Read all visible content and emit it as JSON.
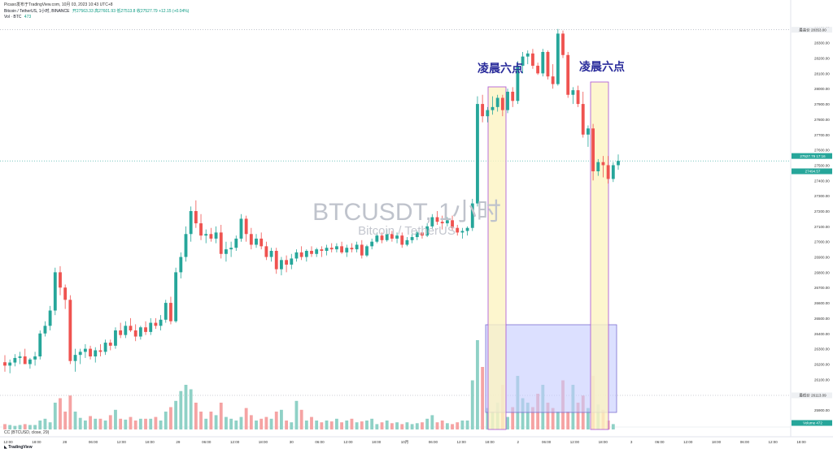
{
  "header": {
    "published_line": "Picaso发布于TradingView.com, 10月 03, 2023 10:43 UTC+8",
    "symbol_line": "Bitcoin / TetherUS, 1小时, BINANCE",
    "ohlc_line": "开27563.33 高27601.93 低27513.8 收27527.79 +12.15 (+0.04%)",
    "volume_line": "Vol · BTC",
    "volume_value": "473"
  },
  "watermark": {
    "title": "BTCUSDT, 1小时",
    "subtitle": "Bitcoin / TetherUS"
  },
  "annotations": {
    "left": "凌晨六点",
    "right": "凌晨六点"
  },
  "footer": {
    "indicator": "CC (BTCUSD, close, 29)",
    "logo": "TradingView"
  },
  "colors": {
    "up": "#26a69a",
    "down": "#ef5350",
    "vol_up": "#8fd1c6",
    "vol_down": "#f5a3a3",
    "highlight_fill": "#fdf4c2",
    "highlight_border": "#a84fd6",
    "range_fill": "#c4ccff",
    "range_border": "#7b6fd0",
    "annotation": "#2a2c9b"
  },
  "chart_data": {
    "type": "candlestick",
    "series_name": "BTCUSDT",
    "price_axis_labels": [
      "28400.00",
      "28300.00",
      "28200.00",
      "28100.00",
      "28000.00",
      "27900.00",
      "27800.00",
      "27700.00",
      "27600.00",
      "27500.00",
      "27400.00",
      "27300.00",
      "27200.00",
      "27100.00",
      "27000.00",
      "26900.00",
      "26800.00",
      "26700.00",
      "26600.00",
      "26500.00",
      "26400.00",
      "26300.00",
      "26200.00",
      "26100.00",
      "26000.00",
      "25900.00"
    ],
    "price_badges": {
      "top": "28353.00",
      "top_label": "最高价",
      "current": "27527.79",
      "current_sub": "17:16",
      "open_badge": "27494.57",
      "low": "26113.09",
      "low_label": "最低价",
      "volume_badge": "472"
    },
    "time_labels": [
      "12:00",
      "18:00",
      "28",
      "06:00",
      "12:00",
      "18:00",
      "29",
      "06:00",
      "12:00",
      "18:00",
      "30",
      "06:00",
      "12:00",
      "18:00",
      "10月",
      "06:00",
      "12:00",
      "18:00",
      "2",
      "06:00",
      "12:00",
      "18:00",
      "3",
      "06:00",
      "12:00",
      "18:00",
      "06:00",
      "12:00",
      "18:00"
    ],
    "candles": [
      [
        26212,
        26258,
        26150,
        26190
      ],
      [
        26190,
        26230,
        26140,
        26210
      ],
      [
        26210,
        26265,
        26185,
        26240
      ],
      [
        26240,
        26280,
        26200,
        26250
      ],
      [
        26250,
        26300,
        26200,
        26200
      ],
      [
        26200,
        26240,
        26170,
        26230
      ],
      [
        26230,
        26280,
        26190,
        26250
      ],
      [
        26250,
        26420,
        26230,
        26400
      ],
      [
        26400,
        26480,
        26380,
        26450
      ],
      [
        26450,
        26580,
        26420,
        26550
      ],
      [
        26550,
        26830,
        26520,
        26800
      ],
      [
        26800,
        26840,
        26650,
        26700
      ],
      [
        26700,
        26720,
        26560,
        26620
      ],
      [
        26620,
        26650,
        26200,
        26220
      ],
      [
        26220,
        26300,
        26150,
        26260
      ],
      [
        26260,
        26300,
        26200,
        26280
      ],
      [
        26280,
        26330,
        26240,
        26300
      ],
      [
        26300,
        26320,
        26230,
        26250
      ],
      [
        26250,
        26310,
        26210,
        26290
      ],
      [
        26290,
        26330,
        26250,
        26280
      ],
      [
        26280,
        26360,
        26260,
        26340
      ],
      [
        26340,
        26360,
        26290,
        26320
      ],
      [
        26320,
        26440,
        26300,
        26420
      ],
      [
        26420,
        26470,
        26370,
        26390
      ],
      [
        26390,
        26480,
        26370,
        26450
      ],
      [
        26450,
        26500,
        26410,
        26420
      ],
      [
        26420,
        26460,
        26350,
        26380
      ],
      [
        26380,
        26450,
        26360,
        26440
      ],
      [
        26440,
        26480,
        26390,
        26410
      ],
      [
        26410,
        26500,
        26390,
        26470
      ],
      [
        26470,
        26500,
        26430,
        26450
      ],
      [
        26450,
        26520,
        26420,
        26490
      ],
      [
        26490,
        26620,
        26470,
        26600
      ],
      [
        26600,
        26640,
        26460,
        26480
      ],
      [
        26480,
        26830,
        26470,
        26800
      ],
      [
        26800,
        26930,
        26760,
        26900
      ],
      [
        26900,
        27100,
        26870,
        27050
      ],
      [
        27050,
        27230,
        27000,
        27200
      ],
      [
        27200,
        27270,
        27090,
        27120
      ],
      [
        27120,
        27180,
        27010,
        27040
      ],
      [
        27040,
        27080,
        26990,
        27050
      ],
      [
        27050,
        27090,
        27000,
        27020
      ],
      [
        27020,
        27100,
        26990,
        27060
      ],
      [
        27060,
        27110,
        26890,
        26920
      ],
      [
        26920,
        27000,
        26870,
        26950
      ],
      [
        26950,
        27000,
        26900,
        26960
      ],
      [
        26960,
        27040,
        26940,
        27020
      ],
      [
        27020,
        27180,
        27000,
        27150
      ],
      [
        27150,
        27170,
        27000,
        27050
      ],
      [
        27050,
        27090,
        26950,
        26980
      ],
      [
        26980,
        27050,
        26960,
        27020
      ],
      [
        27020,
        27060,
        26950,
        26970
      ],
      [
        26970,
        27000,
        26880,
        26900
      ],
      [
        26900,
        26960,
        26870,
        26940
      ],
      [
        26940,
        26960,
        26790,
        26820
      ],
      [
        26820,
        26900,
        26780,
        26880
      ],
      [
        26880,
        26910,
        26800,
        26850
      ],
      [
        26850,
        26920,
        26820,
        26890
      ],
      [
        26890,
        26950,
        26870,
        26930
      ],
      [
        26930,
        26970,
        26880,
        26900
      ],
      [
        26900,
        26950,
        26870,
        26940
      ],
      [
        26940,
        26970,
        26900,
        26920
      ],
      [
        26920,
        26960,
        26900,
        26950
      ],
      [
        26950,
        26970,
        26900,
        26940
      ],
      [
        26940,
        26980,
        26910,
        26960
      ],
      [
        26960,
        26990,
        26930,
        26950
      ],
      [
        26950,
        26990,
        26930,
        26970
      ],
      [
        26970,
        27000,
        26920,
        26930
      ],
      [
        26930,
        26980,
        26900,
        26960
      ],
      [
        26960,
        26990,
        26930,
        26950
      ],
      [
        26950,
        27000,
        26930,
        26980
      ],
      [
        26980,
        27010,
        26890,
        26910
      ],
      [
        26910,
        26980,
        26900,
        26970
      ],
      [
        26970,
        27020,
        26950,
        27000
      ],
      [
        27000,
        27060,
        26990,
        27040
      ],
      [
        27040,
        27060,
        26990,
        27010
      ],
      [
        27010,
        27080,
        27000,
        27050
      ],
      [
        27050,
        27070,
        27000,
        27020
      ],
      [
        27020,
        27060,
        26990,
        27040
      ],
      [
        27040,
        27060,
        26960,
        26980
      ],
      [
        26980,
        27030,
        26970,
        27010
      ],
      [
        27010,
        27050,
        26990,
        27030
      ],
      [
        27030,
        27070,
        27010,
        27060
      ],
      [
        27060,
        27090,
        27020,
        27040
      ],
      [
        27040,
        27120,
        27030,
        27100
      ],
      [
        27100,
        27180,
        27080,
        27160
      ],
      [
        27160,
        27200,
        27110,
        27130
      ],
      [
        27130,
        27170,
        27080,
        27120
      ],
      [
        27120,
        27160,
        27100,
        27140
      ],
      [
        27140,
        27170,
        27070,
        27090
      ],
      [
        27090,
        27110,
        27040,
        27060
      ],
      [
        27060,
        27090,
        27020,
        27070
      ],
      [
        27070,
        27100,
        27040,
        27090
      ],
      [
        27090,
        27280,
        27070,
        27250
      ],
      [
        27250,
        27950,
        27230,
        27900
      ],
      [
        27900,
        27960,
        27780,
        27820
      ],
      [
        27820,
        27880,
        27780,
        27860
      ],
      [
        27860,
        27950,
        27830,
        27880
      ],
      [
        27880,
        27960,
        27850,
        27940
      ],
      [
        27940,
        27960,
        27820,
        27860
      ],
      [
        27860,
        28000,
        27840,
        27980
      ],
      [
        27980,
        28010,
        27880,
        27920
      ],
      [
        27920,
        28180,
        27900,
        28150
      ],
      [
        28150,
        28240,
        28100,
        28210
      ],
      [
        28210,
        28250,
        28160,
        28230
      ],
      [
        28230,
        28260,
        28130,
        28150
      ],
      [
        28150,
        28170,
        28090,
        28100
      ],
      [
        28100,
        28260,
        28080,
        28240
      ],
      [
        28240,
        28250,
        28060,
        28080
      ],
      [
        28080,
        28160,
        28000,
        28030
      ],
      [
        28030,
        28390,
        28020,
        28360
      ],
      [
        28360,
        28380,
        28200,
        28220
      ],
      [
        28220,
        28240,
        27940,
        27960
      ],
      [
        27960,
        28010,
        27900,
        27990
      ],
      [
        27990,
        28020,
        27880,
        27900
      ],
      [
        27900,
        27980,
        27680,
        27700
      ],
      [
        27700,
        27760,
        27620,
        27740
      ],
      [
        27740,
        27770,
        27400,
        27460
      ],
      [
        27460,
        27540,
        27430,
        27520
      ],
      [
        27520,
        27560,
        27420,
        27500
      ],
      [
        27500,
        27560,
        27380,
        27410
      ],
      [
        27410,
        27520,
        27390,
        27500
      ],
      [
        27500,
        27570,
        27470,
        27528
      ]
    ],
    "volumes": [
      0.06,
      0.05,
      0.04,
      0.05,
      0.06,
      0.05,
      0.05,
      0.1,
      0.12,
      0.08,
      0.3,
      0.35,
      0.2,
      0.38,
      0.2,
      0.13,
      0.1,
      0.15,
      0.12,
      0.12,
      0.1,
      0.16,
      0.22,
      0.12,
      0.11,
      0.14,
      0.1,
      0.12,
      0.12,
      0.12,
      0.14,
      0.1,
      0.2,
      0.25,
      0.32,
      0.43,
      0.5,
      0.45,
      0.3,
      0.2,
      0.12,
      0.2,
      0.16,
      0.3,
      0.14,
      0.12,
      0.1,
      0.14,
      0.24,
      0.16,
      0.1,
      0.12,
      0.14,
      0.12,
      0.2,
      0.22,
      0.1,
      0.08,
      0.32,
      0.22,
      0.1,
      0.14,
      0.1,
      0.08,
      0.1,
      0.09,
      0.12,
      0.08,
      0.1,
      0.12,
      0.08,
      0.09,
      0.1,
      0.12,
      0.06,
      0.08,
      0.1,
      0.07,
      0.08,
      0.06,
      0.08,
      0.06,
      0.07,
      0.08,
      0.12,
      0.16,
      0.08,
      0.1,
      0.07,
      0.06,
      0.08,
      0.1,
      0.1,
      0.55,
      1.0,
      0.7,
      0.24,
      0.2,
      0.3,
      0.5,
      0.14,
      0.25,
      0.6,
      0.35,
      0.3,
      0.25,
      0.4,
      0.5,
      0.3,
      0.24,
      0.2,
      0.55,
      0.2,
      0.5,
      0.3,
      0.38,
      0.24,
      0.6,
      0.28,
      0.22,
      0.1,
      0.06
    ]
  }
}
